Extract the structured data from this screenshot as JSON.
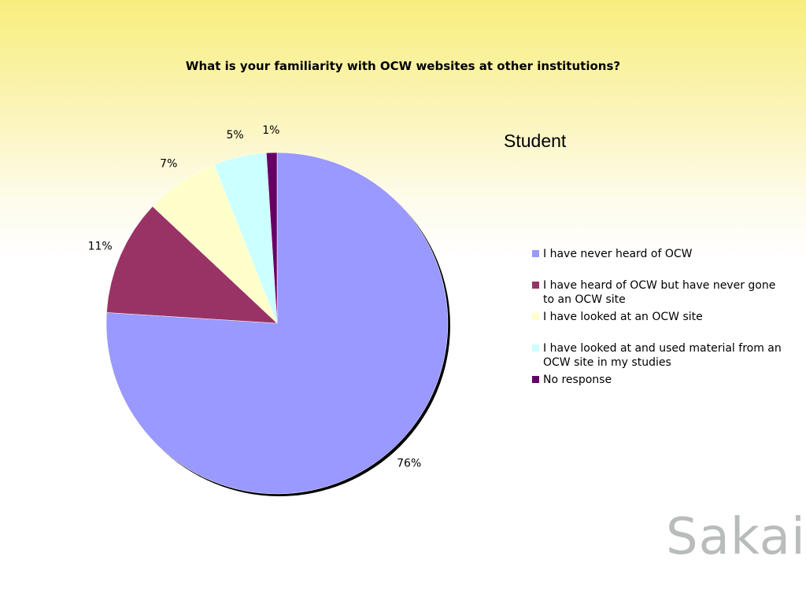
{
  "chart_data": {
    "type": "pie",
    "title": "What is your familiarity with OCW websites at other institutions?",
    "subtitle": "Student",
    "categories": [
      "I have never heard of OCW",
      "I have heard of OCW but have never gone to an OCW site",
      "I have looked at an OCW site",
      "I have looked at and used material from an OCW site in my studies",
      "No response"
    ],
    "values": [
      76,
      11,
      7,
      5,
      1
    ],
    "value_labels": [
      "76%",
      "11%",
      "7%",
      "5%",
      "1%"
    ],
    "colors": [
      "#9999ff",
      "#993366",
      "#ffffcc",
      "#ccffff",
      "#660066"
    ]
  },
  "logo": "Sakai"
}
